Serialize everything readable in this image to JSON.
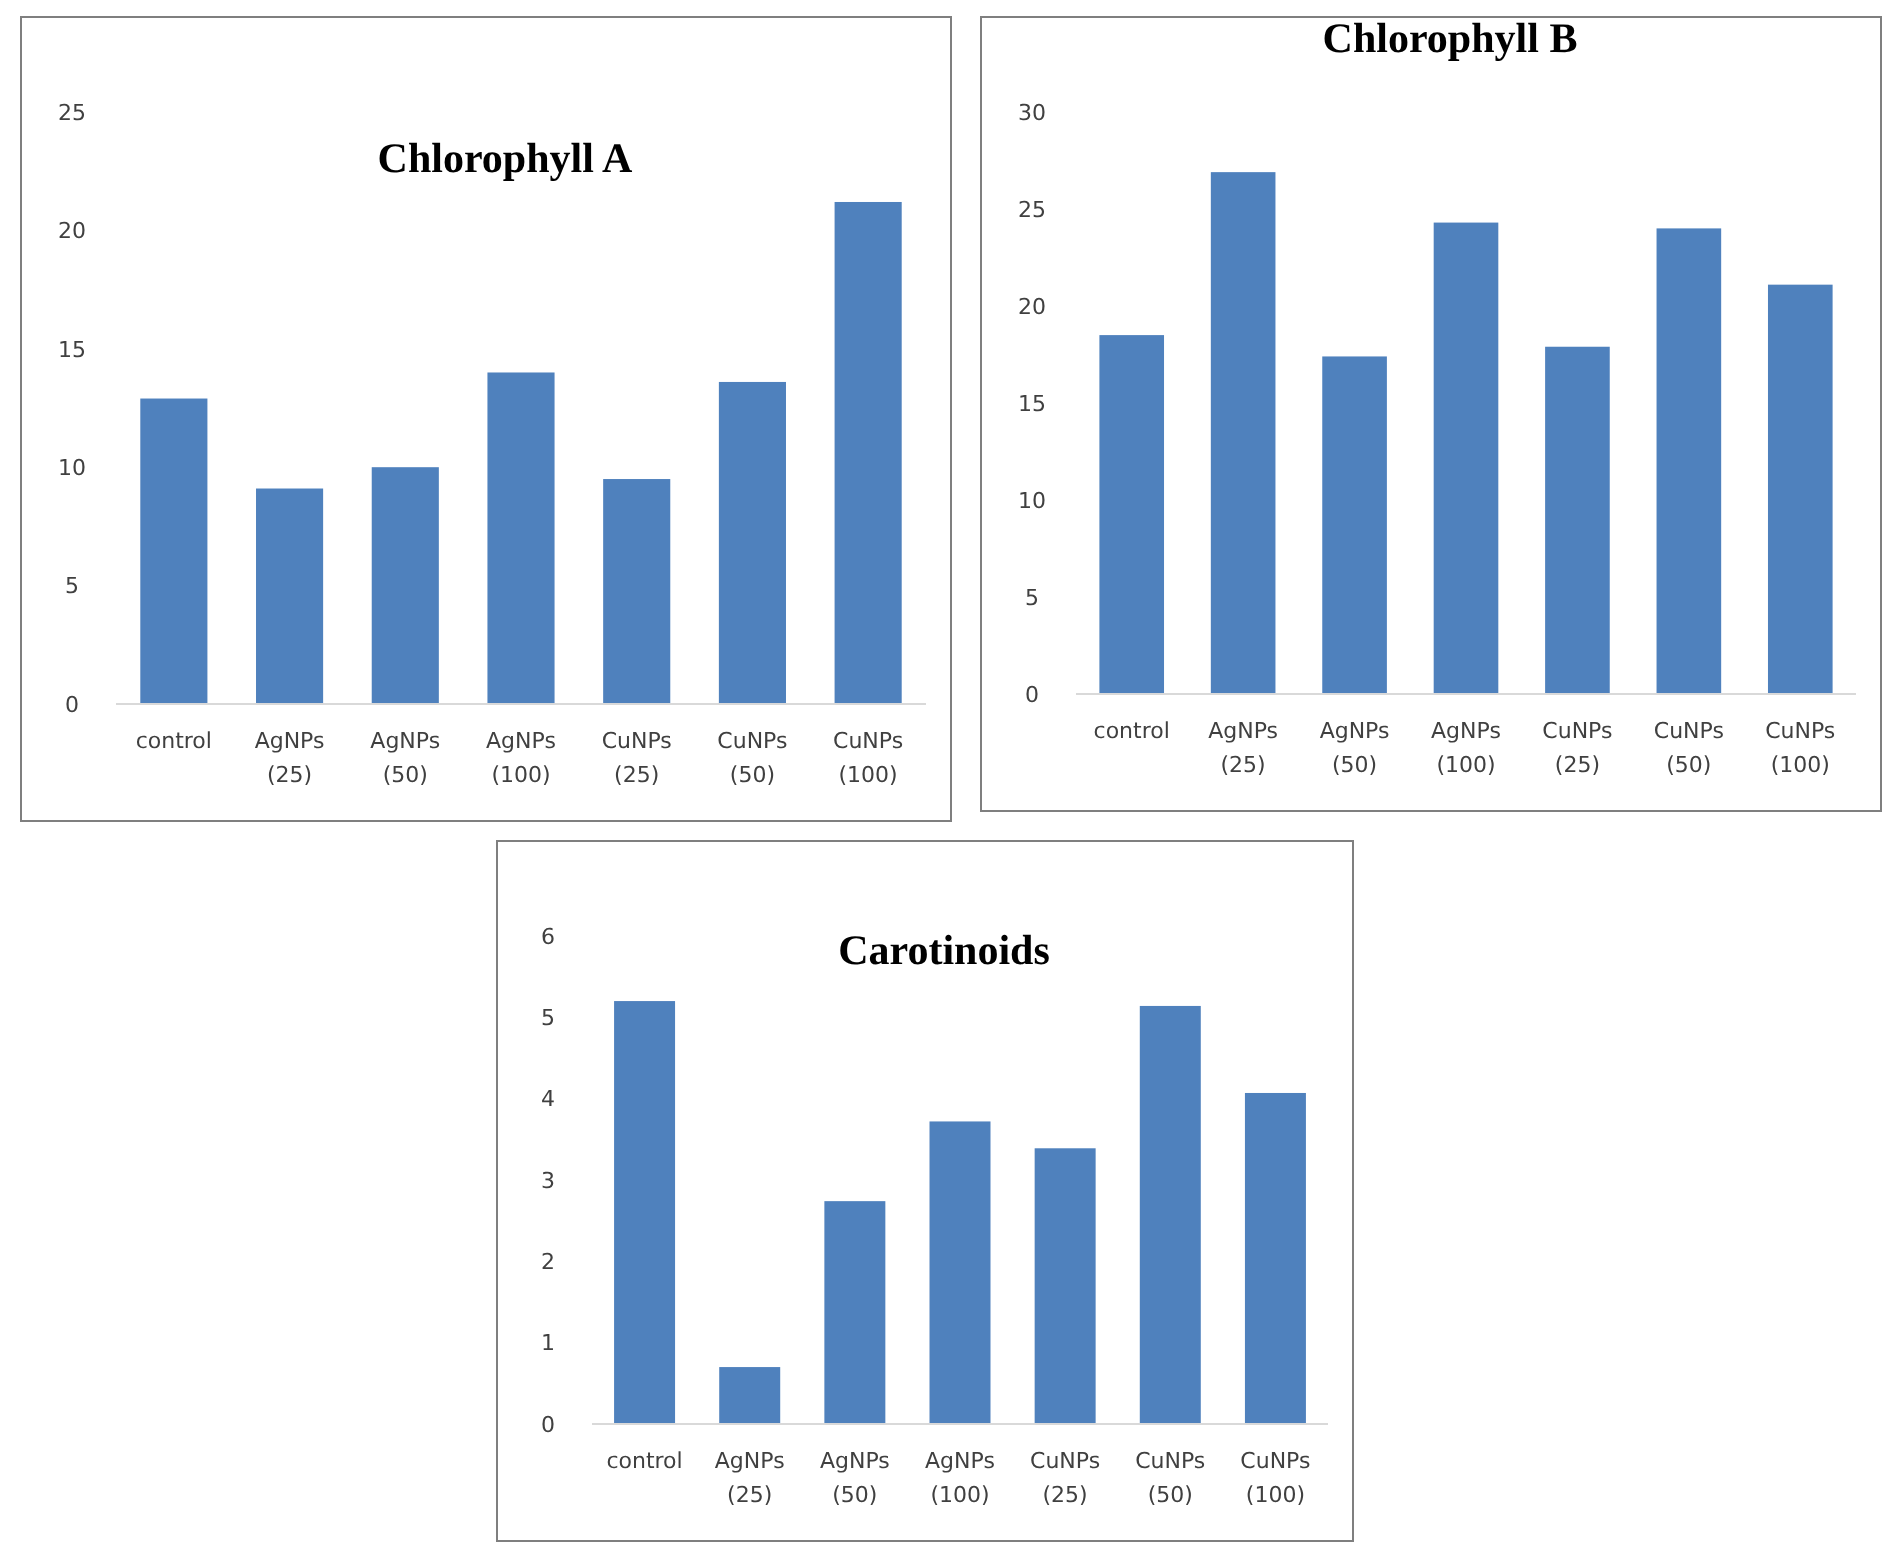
{
  "chart_data": [
    {
      "type": "bar",
      "title": "Chlorophyll A",
      "categories": [
        "control",
        "AgNPs (25)",
        "AgNPs (50)",
        "AgNPs (100)",
        "CuNPs (25)",
        "CuNPs (50)",
        "CuNPs (100)"
      ],
      "values": [
        12.9,
        9.1,
        10.0,
        14.0,
        9.5,
        13.6,
        21.2
      ],
      "color": "#4f81bd",
      "ylim": [
        0,
        25
      ],
      "yticks": [
        0,
        5,
        10,
        15,
        20,
        25
      ],
      "grid": false
    },
    {
      "type": "bar",
      "title": "Chlorophyll B",
      "categories": [
        "control",
        "AgNPs (25)",
        "AgNPs (50)",
        "AgNPs (100)",
        "CuNPs (25)",
        "CuNPs (50)",
        "CuNPs (100)"
      ],
      "values": [
        18.5,
        26.9,
        17.4,
        24.3,
        17.9,
        24.0,
        21.1
      ],
      "color": "#4f81bd",
      "ylim": [
        0,
        30
      ],
      "yticks": [
        0,
        5,
        10,
        15,
        20,
        25,
        30
      ],
      "grid": false
    },
    {
      "type": "bar",
      "title": "Carotinoids",
      "categories": [
        "control",
        "AgNPs (25)",
        "AgNPs (50)",
        "AgNPs (100)",
        "CuNPs (25)",
        "CuNPs (50)",
        "CuNPs (100)"
      ],
      "values": [
        5.2,
        0.7,
        2.74,
        3.72,
        3.39,
        5.14,
        4.07
      ],
      "color": "#4f81bd",
      "ylim": [
        0,
        6
      ],
      "yticks": [
        0,
        1,
        2,
        3,
        4,
        5,
        6
      ],
      "grid": false
    }
  ]
}
